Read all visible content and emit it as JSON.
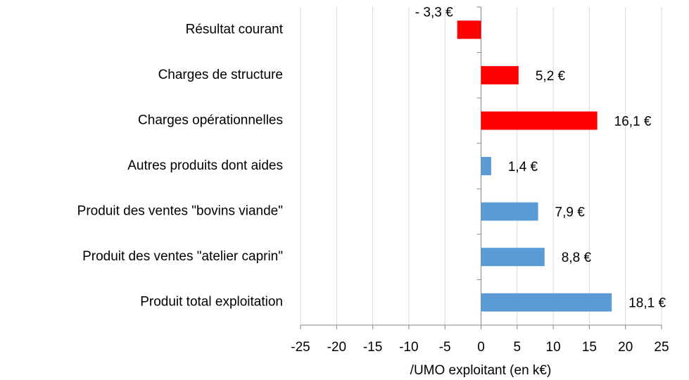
{
  "chart_data": {
    "type": "bar",
    "orientation": "horizontal",
    "categories": [
      "Résultat courant",
      "Charges de structure",
      "Charges opérationnelles",
      "Autres produits dont aides",
      "Produit des ventes \"bovins viande\"",
      "Produit des ventes \"atelier caprin\"",
      "Produit total exploitation"
    ],
    "values": [
      -3.3,
      5.2,
      16.1,
      1.4,
      7.9,
      8.8,
      18.1
    ],
    "value_labels": [
      "- 3,3 €",
      "5,2 €",
      "16,1 €",
      "1,4 €",
      "7,9 €",
      "8,8 €",
      "18,1 €"
    ],
    "colors": [
      "#ff0000",
      "#ff0000",
      "#ff0000",
      "#5b9bd5",
      "#5b9bd5",
      "#5b9bd5",
      "#5b9bd5"
    ],
    "xlabel": "/UMO exploitant (en k€)",
    "xlim": [
      -25,
      25
    ],
    "xticks": [
      -25,
      -20,
      -15,
      -10,
      -5,
      0,
      5,
      10,
      15,
      20,
      25
    ],
    "grid": true
  }
}
